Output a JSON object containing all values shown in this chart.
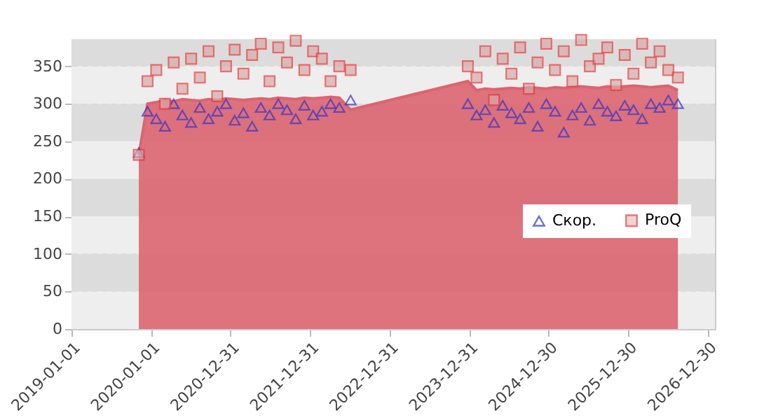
{
  "chart_data": {
    "type": "scatter",
    "x": [
      "2019-11-06",
      "2019-12-16",
      "2020-01-25",
      "2020-03-05",
      "2020-04-14",
      "2020-05-24",
      "2020-07-03",
      "2020-08-12",
      "2020-09-21",
      "2020-10-31",
      "2020-12-10",
      "2021-01-19",
      "2021-02-28",
      "2021-04-09",
      "2021-05-19",
      "2021-06-28",
      "2021-08-07",
      "2021-09-16",
      "2021-10-26",
      "2021-12-05",
      "2022-01-14",
      "2022-02-23",
      "2022-04-04",
      "2022-05-14",
      "2022-07-05",
      "2023-12-25",
      "2024-02-03",
      "2024-03-14",
      "2024-04-23",
      "2024-06-02",
      "2024-07-12",
      "2024-08-21",
      "2024-09-30",
      "2024-11-09",
      "2024-12-19",
      "2025-01-28",
      "2025-03-09",
      "2025-04-18",
      "2025-05-28",
      "2025-07-07",
      "2025-08-16",
      "2025-09-25",
      "2025-11-04",
      "2025-12-14",
      "2026-01-23",
      "2026-03-04",
      "2026-04-13",
      "2026-05-23",
      "2026-07-02",
      "2026-08-15"
    ],
    "series": [
      {
        "type": "area",
        "color": "#dc6470",
        "values": [
          232,
          300,
          302,
          305,
          303,
          306,
          305,
          304,
          306,
          305,
          307,
          306,
          305,
          306,
          307,
          306,
          308,
          307,
          306,
          308,
          307,
          308,
          309,
          308,
          292,
          330,
          318,
          320,
          319,
          320,
          321,
          320,
          322,
          321,
          320,
          322,
          321,
          322,
          323,
          322,
          321,
          323,
          322,
          323,
          324,
          323,
          322,
          323,
          324,
          318
        ]
      },
      {
        "name": "Скор.",
        "type": "scatter",
        "marker": "triangle",
        "color": "#3333cc",
        "values": [
          235,
          290,
          280,
          270,
          300,
          285,
          275,
          295,
          280,
          290,
          300,
          278,
          288,
          270,
          295,
          285,
          300,
          292,
          280,
          298,
          285,
          290,
          300,
          295,
          305,
          300,
          285,
          292,
          275,
          298,
          288,
          280,
          295,
          270,
          300,
          290,
          262,
          285,
          295,
          278,
          300,
          290,
          284,
          298,
          292,
          280,
          300,
          295,
          305,
          300
        ]
      },
      {
        "name": "ProQ",
        "marker": "square",
        "color": "#e83a3a",
        "values": [
          232,
          330,
          345,
          300,
          355,
          320,
          360,
          335,
          370,
          310,
          350,
          372,
          340,
          365,
          380,
          330,
          375,
          355,
          384,
          345,
          370,
          360,
          330,
          350,
          345,
          350,
          335,
          370,
          305,
          360,
          340,
          375,
          320,
          355,
          380,
          345,
          370,
          330,
          385,
          350,
          360,
          375,
          325,
          365,
          340,
          380,
          355,
          370,
          345,
          335
        ]
      }
    ],
    "xlim": [
      "2019-01-01",
      "2027-02-01"
    ],
    "xticks": [
      "2019-01-01",
      "2020-01-01",
      "2020-12-31",
      "2021-12-31",
      "2022-12-31",
      "2023-12-31",
      "2024-12-30",
      "2025-12-30",
      "2026-12-30"
    ],
    "ylim": [
      0,
      386
    ],
    "yticks": [
      0,
      50,
      100,
      150,
      200,
      250,
      300,
      350
    ],
    "grid": true,
    "legend": "right"
  }
}
